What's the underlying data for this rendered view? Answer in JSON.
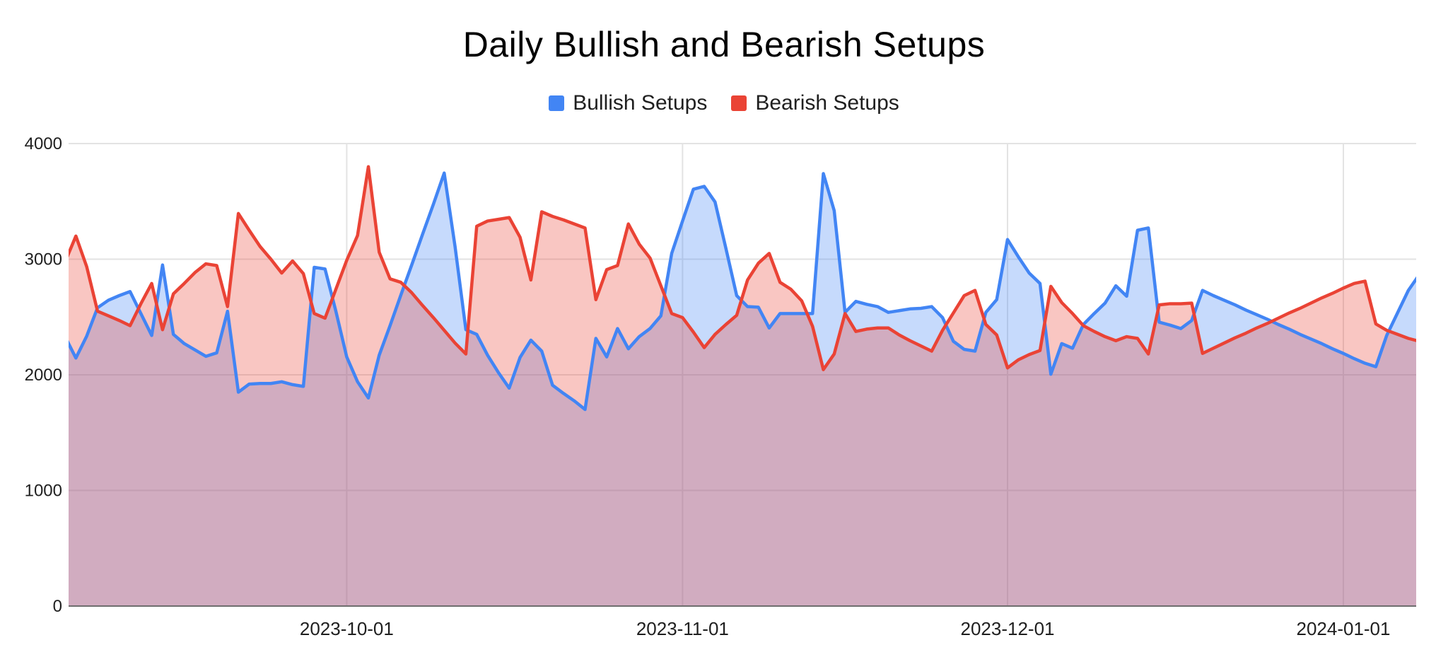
{
  "page": {
    "background": "#ffffff"
  },
  "chart_data": {
    "type": "area",
    "title": "Daily Bullish and Bearish Setups",
    "legend_position": "top",
    "xlabel": "",
    "ylabel": "",
    "ylim": [
      0,
      4000
    ],
    "yticks": [
      0,
      1000,
      2000,
      3000,
      4000
    ],
    "xticks": [
      "2023-10-01",
      "2023-11-01",
      "2023-12-01",
      "2024-01-01"
    ],
    "grid": true,
    "colors": {
      "grid": "#e3e3e3",
      "axis_line": "#6e6e6e",
      "tick_label": "#1f1f1f",
      "title": "#000000",
      "bullish": "#4285F4",
      "bearish": "#EA4335"
    },
    "x": [
      "2023-09-05",
      "2023-09-06",
      "2023-09-07",
      "2023-09-08",
      "2023-09-09",
      "2023-09-10",
      "2023-09-11",
      "2023-09-12",
      "2023-09-13",
      "2023-09-14",
      "2023-09-15",
      "2023-09-16",
      "2023-09-17",
      "2023-09-18",
      "2023-09-19",
      "2023-09-20",
      "2023-09-21",
      "2023-09-22",
      "2023-09-23",
      "2023-09-24",
      "2023-09-25",
      "2023-09-26",
      "2023-09-27",
      "2023-09-28",
      "2023-09-29",
      "2023-09-30",
      "2023-10-01",
      "2023-10-02",
      "2023-10-03",
      "2023-10-04",
      "2023-10-05",
      "2023-10-06",
      "2023-10-07",
      "2023-10-08",
      "2023-10-09",
      "2023-10-10",
      "2023-10-11",
      "2023-10-12",
      "2023-10-13",
      "2023-10-14",
      "2023-10-15",
      "2023-10-16",
      "2023-10-17",
      "2023-10-18",
      "2023-10-19",
      "2023-10-20",
      "2023-10-21",
      "2023-10-22",
      "2023-10-23",
      "2023-10-24",
      "2023-10-25",
      "2023-10-26",
      "2023-10-27",
      "2023-10-28",
      "2023-10-29",
      "2023-10-30",
      "2023-10-31",
      "2023-11-01",
      "2023-11-02",
      "2023-11-03",
      "2023-11-04",
      "2023-11-05",
      "2023-11-06",
      "2023-11-07",
      "2023-11-08",
      "2023-11-09",
      "2023-11-10",
      "2023-11-11",
      "2023-11-12",
      "2023-11-13",
      "2023-11-14",
      "2023-11-15",
      "2023-11-16",
      "2023-11-17",
      "2023-11-18",
      "2023-11-19",
      "2023-11-20",
      "2023-11-21",
      "2023-11-22",
      "2023-11-23",
      "2023-11-24",
      "2023-11-25",
      "2023-11-26",
      "2023-11-27",
      "2023-11-28",
      "2023-11-29",
      "2023-11-30",
      "2023-12-01",
      "2023-12-02",
      "2023-12-03",
      "2023-12-04",
      "2023-12-05",
      "2023-12-06",
      "2023-12-07",
      "2023-12-08",
      "2023-12-09",
      "2023-12-10",
      "2023-12-11",
      "2023-12-12",
      "2023-12-13",
      "2023-12-14",
      "2023-12-15",
      "2023-12-16",
      "2023-12-17",
      "2023-12-18",
      "2023-12-19",
      "2023-12-20",
      "2023-12-21",
      "2023-12-22",
      "2023-12-23",
      "2023-12-24",
      "2023-12-25",
      "2023-12-26",
      "2023-12-27",
      "2023-12-28",
      "2023-12-29",
      "2023-12-30",
      "2023-12-31",
      "2024-01-01",
      "2024-01-02",
      "2024-01-03",
      "2024-01-04",
      "2024-01-05",
      "2024-01-06",
      "2024-01-07",
      "2024-01-08"
    ],
    "series": [
      {
        "name": "Bullish Setups",
        "color": "#4285F4",
        "fill_opacity": 0.3,
        "values": [
          2330,
          2145,
          2335,
          2580,
          2645,
          2685,
          2720,
          2530,
          2340,
          2950,
          2350,
          2270,
          2215,
          2160,
          2190,
          2550,
          1850,
          1920,
          1925,
          1925,
          1940,
          1915,
          1900,
          2930,
          2915,
          2550,
          2155,
          1940,
          1800,
          2170,
          2425,
          2690,
          2950,
          3215,
          3475,
          3745,
          3110,
          2390,
          2350,
          2170,
          2020,
          1885,
          2150,
          2300,
          2205,
          1910,
          1840,
          1775,
          1700,
          2315,
          2155,
          2400,
          2225,
          2330,
          2400,
          2510,
          3050,
          3330,
          3605,
          3630,
          3495,
          3095,
          2685,
          2590,
          2585,
          2405,
          2530,
          2530,
          2530,
          2530,
          3740,
          3420,
          2540,
          2635,
          2610,
          2590,
          2540,
          2555,
          2570,
          2575,
          2590,
          2495,
          2290,
          2220,
          2205,
          2540,
          2650,
          3170,
          3020,
          2880,
          2790,
          2005,
          2270,
          2230,
          2435,
          2530,
          2620,
          2770,
          2680,
          3250,
          3270,
          2455,
          2430,
          2400,
          2470,
          2730,
          2685,
          2645,
          2605,
          2560,
          2520,
          2480,
          2435,
          2395,
          2350,
          2310,
          2270,
          2225,
          2185,
          2140,
          2100,
          2070,
          2340,
          2535,
          2730,
          2865
        ]
      },
      {
        "name": "Bearish Setups",
        "color": "#EA4335",
        "fill_opacity": 0.3,
        "values": [
          2975,
          3200,
          2935,
          2550,
          2510,
          2470,
          2425,
          2615,
          2790,
          2390,
          2700,
          2790,
          2885,
          2960,
          2945,
          2590,
          3395,
          3250,
          3110,
          3000,
          2880,
          2985,
          2875,
          2530,
          2490,
          2740,
          2990,
          3205,
          3800,
          3060,
          2830,
          2800,
          2710,
          2600,
          2495,
          2385,
          2275,
          2180,
          3285,
          3330,
          3345,
          3360,
          3190,
          2820,
          3410,
          3370,
          3340,
          3305,
          3270,
          2650,
          2910,
          2945,
          3305,
          3130,
          3010,
          2770,
          2530,
          2495,
          2370,
          2235,
          2350,
          2435,
          2515,
          2820,
          2965,
          3050,
          2800,
          2740,
          2640,
          2420,
          2045,
          2180,
          2530,
          2375,
          2395,
          2405,
          2405,
          2345,
          2295,
          2250,
          2205,
          2385,
          2535,
          2685,
          2730,
          2435,
          2345,
          2060,
          2130,
          2175,
          2210,
          2765,
          2625,
          2530,
          2425,
          2375,
          2330,
          2295,
          2330,
          2315,
          2180,
          2605,
          2615,
          2615,
          2620,
          2185,
          2230,
          2275,
          2320,
          2360,
          2405,
          2445,
          2490,
          2535,
          2575,
          2620,
          2665,
          2705,
          2750,
          2790,
          2810,
          2440,
          2385,
          2350,
          2315,
          2290
        ]
      }
    ]
  }
}
